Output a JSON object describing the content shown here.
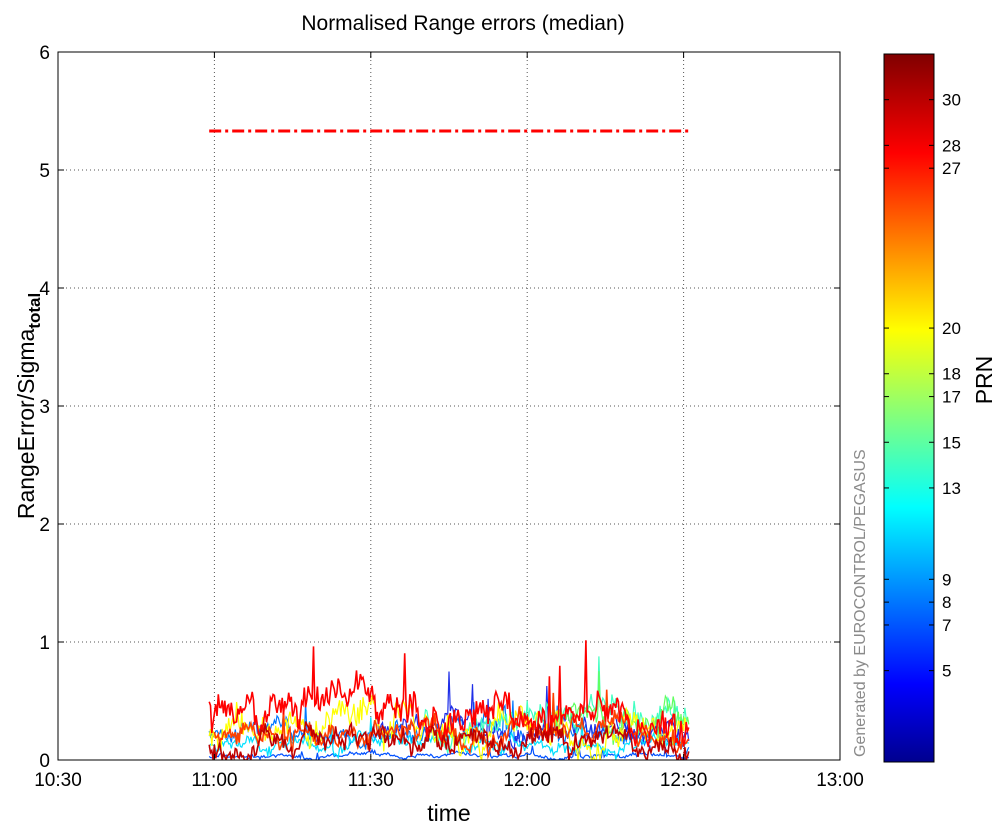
{
  "chart_data": {
    "type": "line",
    "title": "Normalised Range errors (median)",
    "xlabel": "time",
    "ylabel_main": "RangeError/Sigma",
    "ylabel_sub": "total",
    "credit": "Generated by EUROCONTROL/PEGASUS",
    "xlim": [
      "10:30",
      "13:00"
    ],
    "x_ticks": [
      "10:30",
      "11:00",
      "11:30",
      "12:00",
      "12:30",
      "13:00"
    ],
    "ylim": [
      0,
      6
    ],
    "y_ticks": [
      "0",
      "1",
      "2",
      "3",
      "4",
      "5",
      "6"
    ],
    "grid": true,
    "threshold": {
      "value": 5.33,
      "x_start": "10:59",
      "x_end": "12:31",
      "color": "#ff0000",
      "style": "dash-dot"
    },
    "colorbar": {
      "label": "PRN",
      "colormap": "jet",
      "range": [
        1,
        32
      ],
      "ticks": [
        "5",
        "7",
        "8",
        "9",
        "13",
        "15",
        "17",
        "18",
        "20",
        "27",
        "28",
        "30"
      ]
    },
    "series": [
      {
        "prn": 5,
        "color": "#0050ff",
        "base": 0.03,
        "amp": 0.04,
        "start": "10:59",
        "end": "12:31"
      },
      {
        "prn": 7,
        "color": "#0078ff",
        "base": 0.2,
        "amp": 0.15,
        "start": "10:59",
        "end": "12:31"
      },
      {
        "prn": 9,
        "color": "#1e2ee8",
        "base": 0.28,
        "amp": 0.18,
        "start": "11:30",
        "end": "12:31"
      },
      {
        "prn": 13,
        "color": "#00e0ff",
        "base": 0.14,
        "amp": 0.12,
        "start": "10:59",
        "end": "12:31"
      },
      {
        "prn": 15,
        "color": "#40ffc0",
        "base": 0.35,
        "amp": 0.25,
        "start": "11:40",
        "end": "12:31"
      },
      {
        "prn": 17,
        "color": "#60ff60",
        "base": 0.4,
        "amp": 0.25,
        "start": "12:05",
        "end": "12:31"
      },
      {
        "prn": 20,
        "color": "#ffff00",
        "base": 0.3,
        "amp": 0.3,
        "start": "10:59",
        "end": "12:31"
      },
      {
        "prn": 27,
        "color": "#ff4000",
        "base": 0.25,
        "amp": 0.2,
        "start": "11:00",
        "end": "12:31"
      },
      {
        "prn": 28,
        "color": "#ff0000",
        "base": 0.38,
        "amp": 0.3,
        "start": "10:59",
        "end": "12:31"
      },
      {
        "prn": 30,
        "color": "#c00000",
        "base": 0.15,
        "amp": 0.2,
        "start": "10:59",
        "end": "12:31"
      }
    ]
  }
}
